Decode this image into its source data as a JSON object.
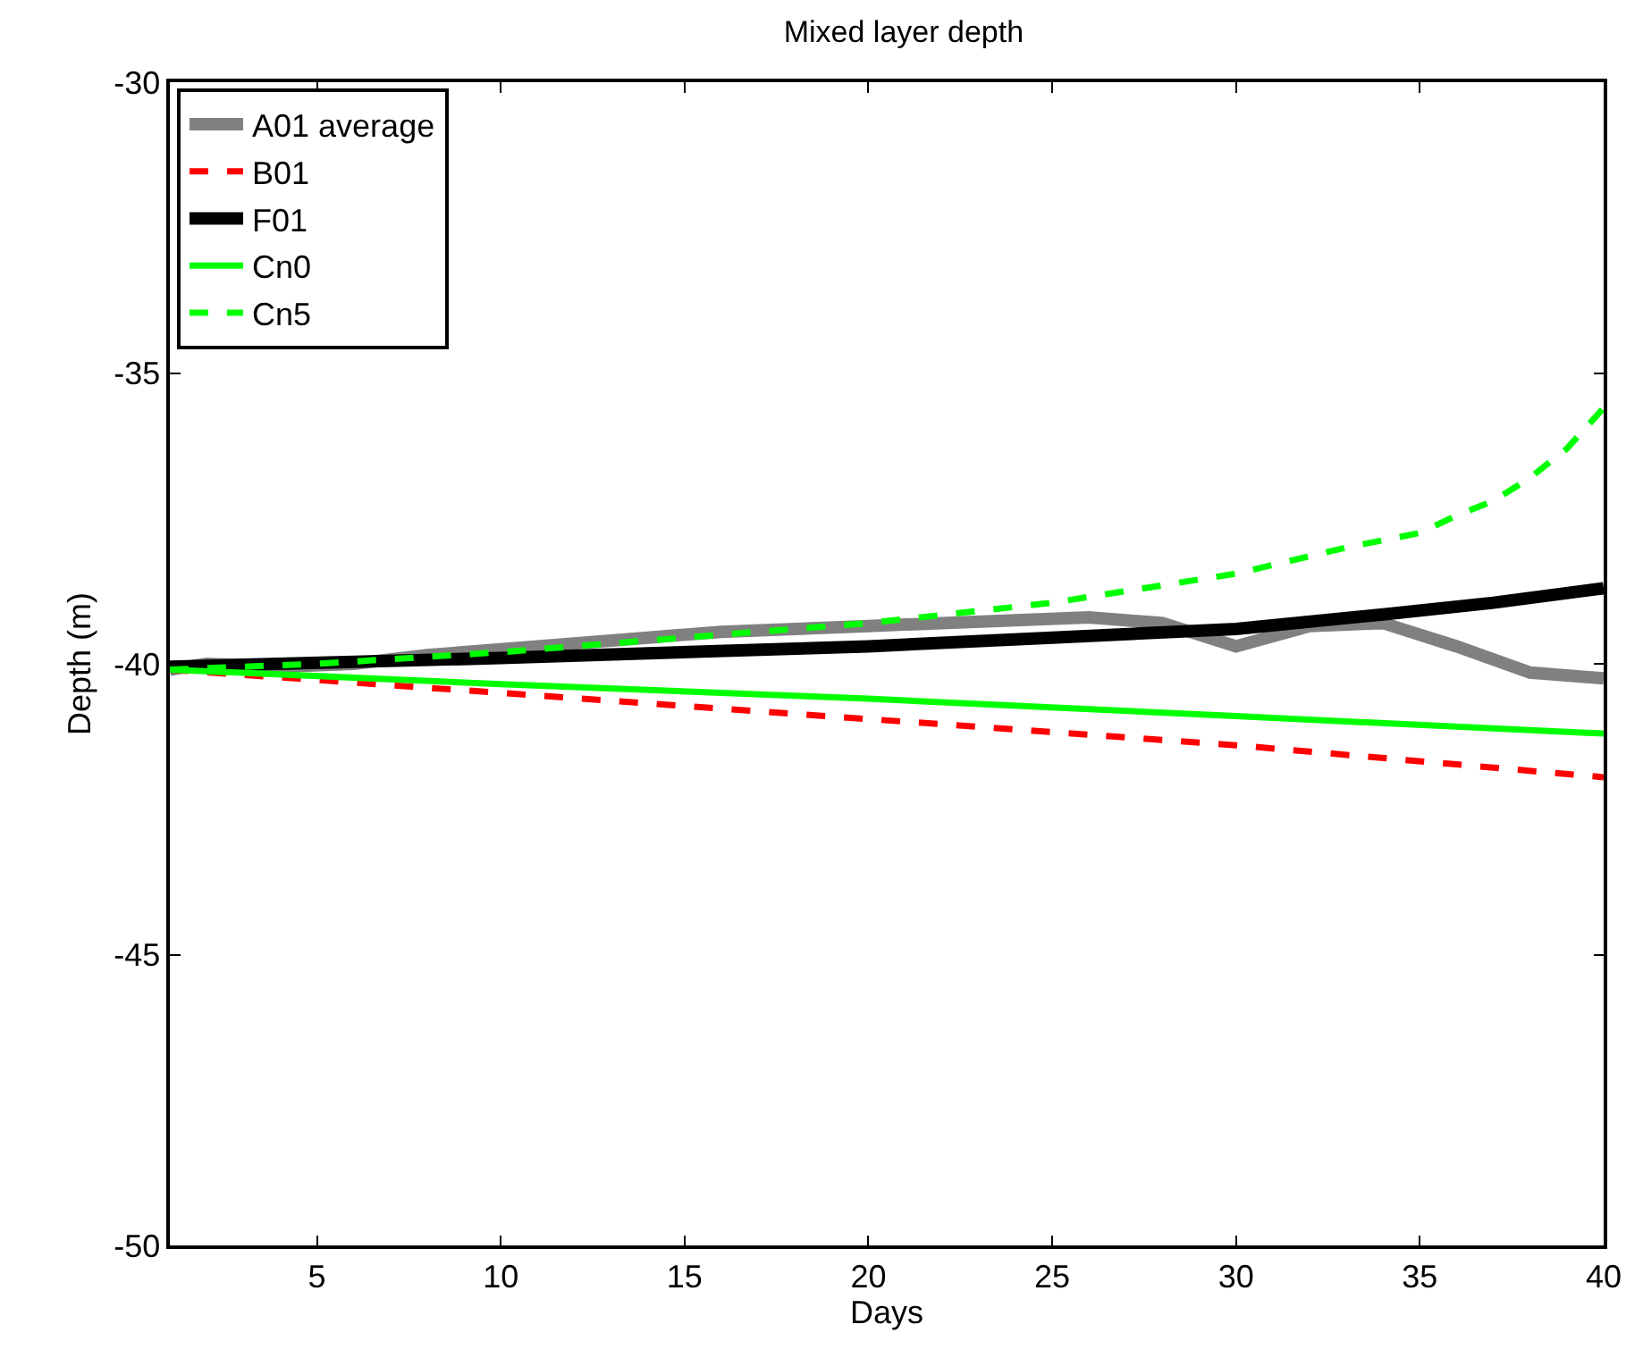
{
  "chart_data": {
    "type": "line",
    "title": "Mixed layer depth",
    "xlabel": "Days",
    "ylabel": "Depth (m)",
    "xlim": [
      1,
      40
    ],
    "xticks": [
      5,
      10,
      15,
      20,
      25,
      30,
      35,
      40
    ],
    "ylim": [
      -50,
      -30
    ],
    "yticks": [
      -50,
      -45,
      -40,
      -35,
      -30
    ],
    "grid": false,
    "legend": "top left",
    "marker": "none",
    "series": [
      {
        "name": "A01 average",
        "color": "#808080",
        "line_style": "solid",
        "x": [
          1,
          2,
          4,
          6,
          8,
          10,
          12,
          14,
          16,
          18,
          20,
          22,
          24,
          26,
          28,
          30,
          32,
          34,
          36,
          38,
          40
        ],
        "values": [
          -40.1,
          -40.0,
          -40.05,
          -40.0,
          -39.85,
          -39.75,
          -39.65,
          -39.55,
          -39.45,
          -39.4,
          -39.35,
          -39.3,
          -39.25,
          -39.2,
          -39.3,
          -39.7,
          -39.35,
          -39.3,
          -39.7,
          -40.15,
          -40.25
        ]
      },
      {
        "name": "B01",
        "color": "#ff0000",
        "line_style": "dashed",
        "x": [
          1,
          10,
          20,
          30,
          40
        ],
        "values": [
          -40.1,
          -40.5,
          -40.95,
          -41.4,
          -41.95
        ]
      },
      {
        "name": "F01",
        "color": "#000000",
        "line_style": "solid",
        "x": [
          1,
          10,
          20,
          25,
          30,
          34,
          37,
          40
        ],
        "values": [
          -40.05,
          -39.9,
          -39.7,
          -39.55,
          -39.4,
          -39.15,
          -38.95,
          -38.7
        ]
      },
      {
        "name": "Cn0",
        "color": "#00ff00",
        "line_style": "solid",
        "x": [
          1,
          10,
          20,
          30,
          40
        ],
        "values": [
          -40.1,
          -40.35,
          -40.6,
          -40.9,
          -41.2
        ]
      },
      {
        "name": "Cn5",
        "color": "#00ff00",
        "line_style": "dashed",
        "x": [
          1,
          5,
          10,
          15,
          20,
          25,
          30,
          33,
          35,
          36,
          37,
          38,
          39,
          40
        ],
        "values": [
          -40.1,
          -40.0,
          -39.8,
          -39.55,
          -39.3,
          -38.95,
          -38.45,
          -38.0,
          -37.75,
          -37.45,
          -37.2,
          -36.8,
          -36.3,
          -35.6
        ]
      }
    ]
  }
}
